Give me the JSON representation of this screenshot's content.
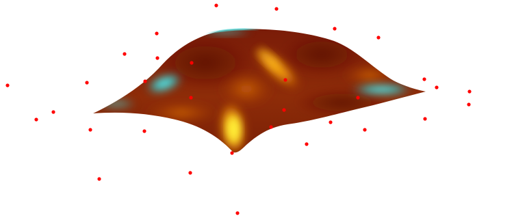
{
  "scene": {
    "type": "3d-surface-with-scatter-points",
    "background_color": "#ffffff",
    "surface": {
      "colormap": [
        "#6b1408",
        "#8e2a07",
        "#c45a08",
        "#f0a010",
        "#ffe020",
        "#4fd6d6"
      ],
      "base_color": "#8a2a0a",
      "highlight_colors": [
        "#ff9e0a",
        "#ffd21a"
      ],
      "edge_highlight_color": "#52d4d4"
    },
    "points": {
      "color": "#ff0000",
      "count": 31
    }
  }
}
